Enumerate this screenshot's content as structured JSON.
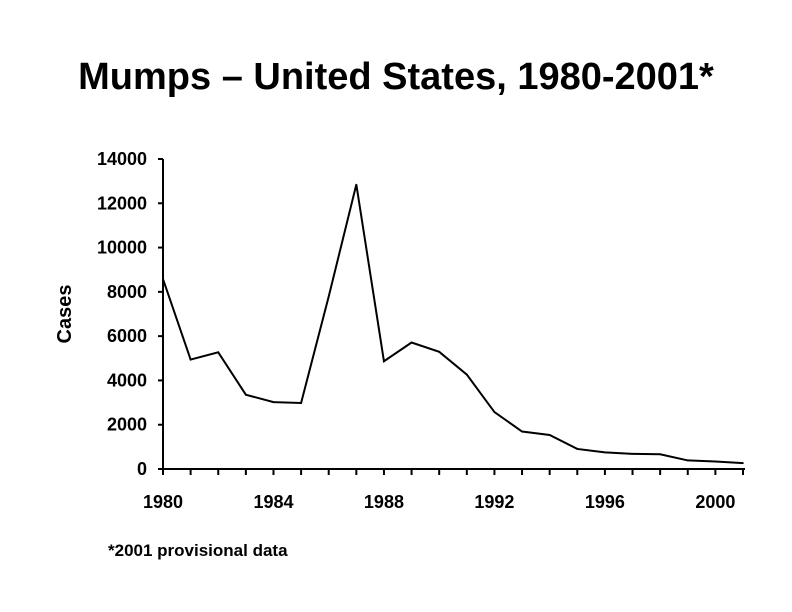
{
  "title": "Mumps – United States, 1980-2001*",
  "footnote": "*2001 provisional data",
  "chart_data": {
    "type": "line",
    "title": "Mumps – United States, 1980-2001*",
    "xlabel": "",
    "ylabel": "Cases",
    "xlim": [
      1980,
      2001
    ],
    "ylim": [
      0,
      14000
    ],
    "x_ticks": [
      "1980",
      "1984",
      "1988",
      "1992",
      "1996",
      "2000"
    ],
    "y_ticks": [
      "0",
      "2000",
      "4000",
      "6000",
      "8000",
      "10000",
      "12000",
      "14000"
    ],
    "grid": false,
    "x": [
      1980,
      1981,
      1982,
      1983,
      1984,
      1985,
      1986,
      1987,
      1988,
      1989,
      1990,
      1991,
      1992,
      1993,
      1994,
      1995,
      1996,
      1997,
      1998,
      1999,
      2000,
      2001
    ],
    "series": [
      {
        "values": [
          8576,
          4941,
          5270,
          3355,
          3021,
          2982,
          7790,
          12848,
          4866,
          5712,
          5292,
          4264,
          2572,
          1692,
          1537,
          906,
          751,
          683,
          666,
          387,
          338,
          266
        ]
      }
    ]
  }
}
